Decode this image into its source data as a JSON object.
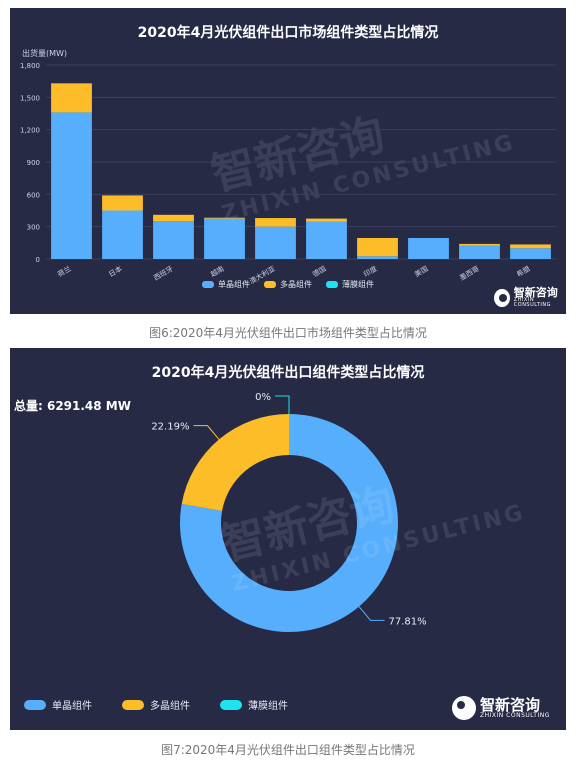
{
  "colors": {
    "panel_bg": "#262a44",
    "mono": "#56aefc",
    "multi": "#fcbd28",
    "thin": "#1de3ef",
    "grid": "#3b4060",
    "text": "#e8eaf4"
  },
  "chart1": {
    "title": "2020年4月光伏组件出口市场组件类型占比情况",
    "caption": "图6:2020年4月光伏组件出口市场组件类型占比情况"
  },
  "chart2": {
    "title": "2020年4月光伏组件出口组件类型占比情况",
    "total_label": "总量: 6291.48 MW",
    "caption": "图7:2020年4月光伏组件出口组件类型占比情况"
  },
  "logo": {
    "name": "智新咨询",
    "sub": "ZHIXIN CONSULTING"
  },
  "watermark": {
    "name": "智新咨询",
    "sub": "ZHIXIN CONSULTING"
  },
  "chart_data": [
    {
      "type": "bar",
      "stacked": true,
      "title": "2020年4月光伏组件出口市场组件类型占比情况",
      "ylabel": "出货量(MW)",
      "xlabel": "",
      "ylim": [
        0,
        1800
      ],
      "yticks": [
        0,
        300,
        600,
        900,
        1200,
        1500,
        1800
      ],
      "ytick_labels": [
        "0",
        "300",
        "600",
        "900",
        "1,200",
        "1,500",
        "1,800"
      ],
      "grid": true,
      "legend_position": "bottom",
      "categories": [
        "荷兰",
        "日本",
        "西班牙",
        "越南",
        "澳大利亚",
        "德国",
        "印度",
        "美国",
        "墨西哥",
        "希腊"
      ],
      "series": [
        {
          "name": "单晶组件",
          "color": "#56aefc",
          "values": [
            1360,
            450,
            350,
            375,
            300,
            345,
            25,
            195,
            125,
            100
          ]
        },
        {
          "name": "多晶组件",
          "color": "#fcbd28",
          "values": [
            270,
            140,
            60,
            8,
            80,
            30,
            170,
            0,
            15,
            35
          ]
        },
        {
          "name": "薄膜组件",
          "color": "#1de3ef",
          "values": [
            0,
            0,
            0,
            0,
            0,
            0,
            0,
            0,
            0,
            0
          ]
        }
      ]
    },
    {
      "type": "pie",
      "donut": true,
      "title": "2020年4月光伏组件出口组件类型占比情况",
      "total": "6291.48 MW",
      "legend_position": "bottom-left",
      "slices": [
        {
          "name": "单晶组件",
          "value": 77.81,
          "label": "77.81%",
          "color": "#56aefc"
        },
        {
          "name": "多晶组件",
          "value": 22.19,
          "label": "22.19%",
          "color": "#fcbd28"
        },
        {
          "name": "薄膜组件",
          "value": 0,
          "label": "0%",
          "color": "#1de3ef"
        }
      ]
    }
  ]
}
